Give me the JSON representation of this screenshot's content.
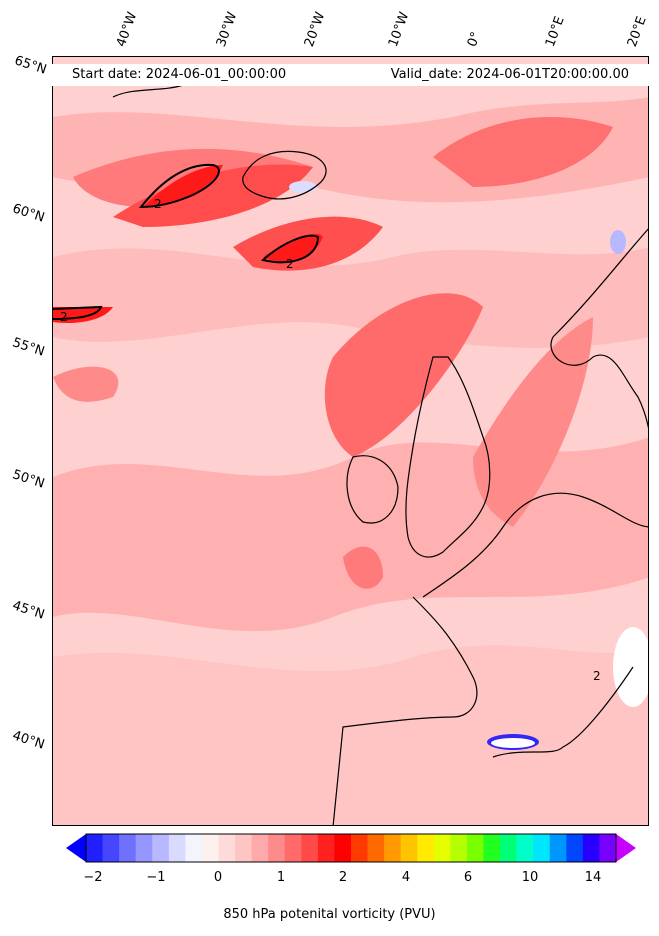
{
  "header": {
    "start_date": "Start date: 2024-06-01_00:00:00",
    "valid_date": "Valid_date: 2024-06-01T20:00:00.00"
  },
  "longitude_labels": [
    "40°W",
    "30°W",
    "20°W",
    "10°W",
    "0°",
    "10°E",
    "20°E"
  ],
  "latitude_labels": [
    "65°N",
    "60°N",
    "55°N",
    "50°N",
    "45°N",
    "40°N"
  ],
  "contour_labels": [
    "2",
    "2",
    "2",
    "2"
  ],
  "colorbar": {
    "label": "850 hPa potenital vorticity (PVU)",
    "ticks": [
      "−2",
      "−1",
      "0",
      "1",
      "2",
      "4",
      "6",
      "10",
      "14"
    ],
    "colors": [
      "#0000ff",
      "#2020ff",
      "#4646ff",
      "#7070ff",
      "#9696ff",
      "#b8b8ff",
      "#dadaff",
      "#f4f4ff",
      "#fff0f0",
      "#ffdada",
      "#ffc4c4",
      "#ffaaaa",
      "#ff8a8a",
      "#ff6a6a",
      "#ff4a4a",
      "#ff2020",
      "#ff0000",
      "#ff3a00",
      "#ff6a00",
      "#ff9a00",
      "#ffc400",
      "#ffea00",
      "#e6ff00",
      "#b4ff00",
      "#78ff00",
      "#20ff20",
      "#00ff78",
      "#00ffc8",
      "#00e6ff",
      "#0096ff",
      "#0046ff",
      "#2800ff",
      "#7800ff",
      "#c800ff"
    ]
  },
  "colors": {
    "background_field": "#fdeaea",
    "light_red": "#ffb0b0",
    "mid_red": "#ff7070",
    "strong_red": "#ff2a2a",
    "land_outline": "#000000"
  }
}
